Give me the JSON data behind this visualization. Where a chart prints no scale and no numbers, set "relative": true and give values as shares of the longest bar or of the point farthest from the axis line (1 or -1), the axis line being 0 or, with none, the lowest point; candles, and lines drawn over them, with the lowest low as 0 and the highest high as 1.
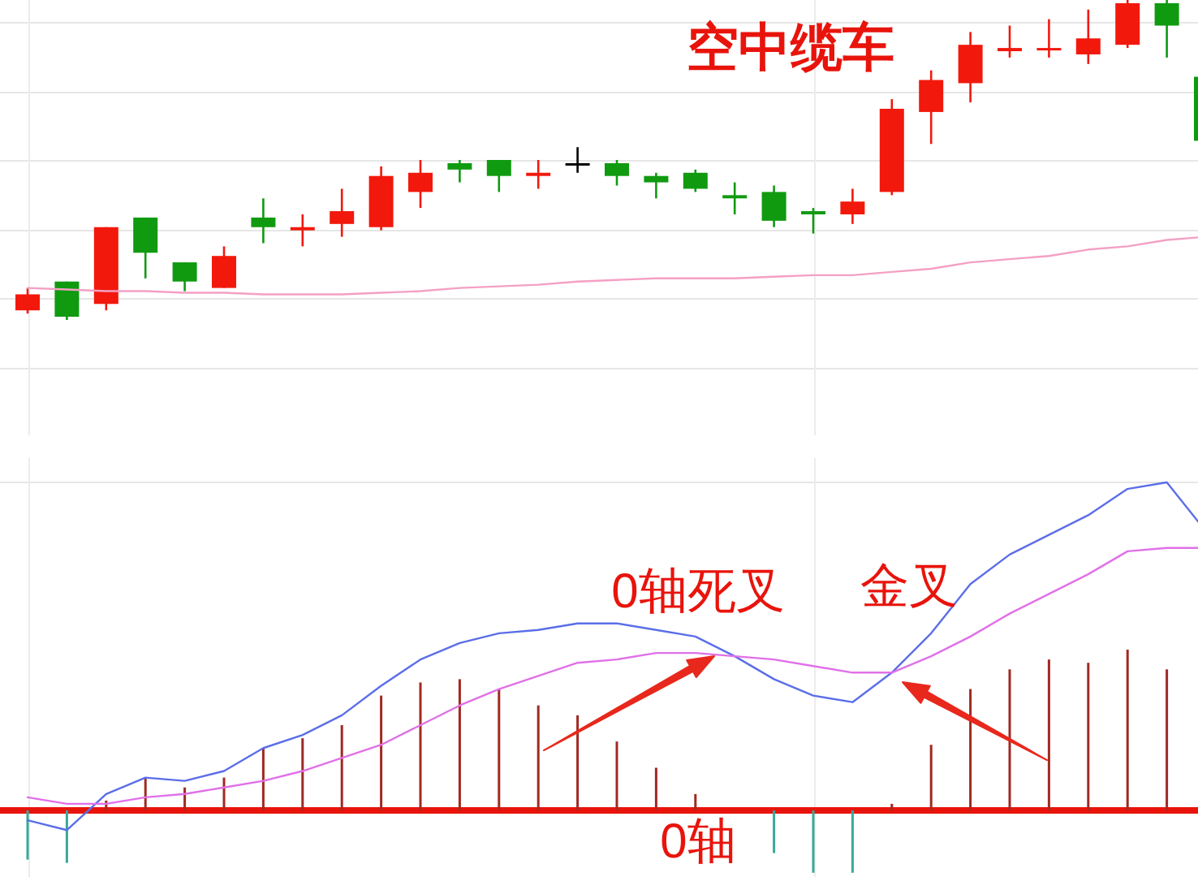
{
  "chart_data": [
    {
      "type": "candlestick",
      "relative": true,
      "grid": true,
      "categories": [
        null,
        null,
        null,
        null,
        null,
        null,
        null,
        null,
        null,
        null,
        null,
        null,
        null,
        null,
        null,
        null,
        null,
        null,
        null,
        null,
        null,
        null,
        null,
        null,
        null,
        null,
        null,
        null,
        null,
        null,
        null
      ],
      "ohlc": [
        [
          0.03,
          0.1,
          0.02,
          0.08
        ],
        [
          0.12,
          0.12,
          0,
          0.01
        ],
        [
          0.05,
          0.29,
          0.03,
          0.29
        ],
        [
          0.32,
          0.32,
          0.13,
          0.21
        ],
        [
          0.18,
          0.18,
          0.09,
          0.12
        ],
        [
          0.1,
          0.23,
          0.1,
          0.2
        ],
        [
          0.32,
          0.38,
          0.24,
          0.29
        ],
        [
          0.28,
          0.33,
          0.23,
          0.29
        ],
        [
          0.3,
          0.41,
          0.26,
          0.34
        ],
        [
          0.29,
          0.48,
          0.28,
          0.45
        ],
        [
          0.4,
          0.5,
          0.35,
          0.46
        ],
        [
          0.49,
          0.5,
          0.43,
          0.47
        ],
        [
          0.5,
          0.5,
          0.4,
          0.45
        ],
        [
          0.45,
          0.5,
          0.41,
          0.46
        ],
        [
          0.49,
          0.54,
          0.46,
          0.49
        ],
        [
          0.49,
          0.5,
          0.42,
          0.45
        ],
        [
          0.45,
          0.46,
          0.38,
          0.43
        ],
        [
          0.46,
          0.47,
          0.4,
          0.41
        ],
        [
          0.39,
          0.43,
          0.33,
          0.38
        ],
        [
          0.4,
          0.42,
          0.29,
          0.31
        ],
        [
          0.34,
          0.35,
          0.27,
          0.33
        ],
        [
          0.33,
          0.41,
          0.3,
          0.37
        ],
        [
          0.4,
          0.69,
          0.39,
          0.66
        ],
        [
          0.65,
          0.78,
          0.55,
          0.75
        ],
        [
          0.74,
          0.9,
          0.68,
          0.86
        ],
        [
          0.84,
          0.92,
          0.82,
          0.85
        ],
        [
          0.85,
          0.94,
          0.82,
          0.85
        ],
        [
          0.83,
          0.97,
          0.8,
          0.88
        ],
        [
          0.86,
          1,
          0.85,
          0.99
        ],
        [
          0.99,
          1,
          0.82,
          0.92
        ],
        [
          0.76,
          0.76,
          0.56,
          0.56
        ]
      ],
      "colors": [
        "#f2180c",
        "#109a10",
        "#f2180c",
        "#109a10",
        "#109a10",
        "#f2180c",
        "#109a10",
        "#f2180c",
        "#f2180c",
        "#f2180c",
        "#f2180c",
        "#109a10",
        "#109a10",
        "#f2180c",
        "#000000",
        "#109a10",
        "#109a10",
        "#109a10",
        "#109a10",
        "#109a10",
        "#109a10",
        "#f2180c",
        "#f2180c",
        "#f2180c",
        "#f2180c",
        "#f2180c",
        "#f2180c",
        "#f2180c",
        "#f2180c",
        "#109a10",
        "#109a10"
      ],
      "series": [
        {
          "type": "line",
          "color": "#f4a0c4",
          "values": [
            0.1,
            0.095,
            0.09,
            0.09,
            0.085,
            0.085,
            0.08,
            0.08,
            0.08,
            0.085,
            0.09,
            0.1,
            0.105,
            0.11,
            0.12,
            0.125,
            0.13,
            0.13,
            0.13,
            0.135,
            0.14,
            0.14,
            0.15,
            0.16,
            0.18,
            0.19,
            0.2,
            0.22,
            0.23,
            0.25,
            0.26
          ]
        }
      ],
      "annotations": [
        "空中缆车"
      ]
    },
    {
      "type": "bar",
      "relative": true,
      "grid": true,
      "categories": [
        null,
        null,
        null,
        null,
        null,
        null,
        null,
        null,
        null,
        null,
        null,
        null,
        null,
        null,
        null,
        null,
        null,
        null,
        null,
        null,
        null,
        null,
        null,
        null,
        null,
        null,
        null,
        null,
        null,
        null,
        null
      ],
      "series": [
        {
          "type": "bar",
          "values": [
            -0.15,
            -0.16,
            0.03,
            0.1,
            0.07,
            0.1,
            0.19,
            0.22,
            0.26,
            0.35,
            0.39,
            0.4,
            0.37,
            0.32,
            0.29,
            0.21,
            0.13,
            0.05,
            0,
            -0.13,
            -0.19,
            -0.19,
            0.02,
            0.2,
            0.37,
            0.43,
            0.46,
            0.45,
            0.49,
            0.43,
            null
          ],
          "colors": [
            "#3aa89a",
            "#3aa89a",
            "#a02a22",
            "#a02a22",
            "#a02a22",
            "#a02a22",
            "#a02a22",
            "#a02a22",
            "#a02a22",
            "#a02a22",
            "#a02a22",
            "#a02a22",
            "#a02a22",
            "#a02a22",
            "#a02a22",
            "#a02a22",
            "#a02a22",
            "#a02a22",
            "#a02a22",
            "#3aa89a",
            "#3aa89a",
            "#3aa89a",
            "#a02a22",
            "#a02a22",
            "#a02a22",
            "#a02a22",
            "#a02a22",
            "#a02a22",
            "#a02a22",
            "#a02a22",
            null
          ]
        },
        {
          "type": "line",
          "color": "#5b6ee8",
          "values": [
            -0.03,
            -0.06,
            0.05,
            0.1,
            0.09,
            0.12,
            0.19,
            0.23,
            0.29,
            0.38,
            0.46,
            0.51,
            0.54,
            0.55,
            0.57,
            0.57,
            0.55,
            0.53,
            0.47,
            0.4,
            0.35,
            0.33,
            0.42,
            0.54,
            0.69,
            0.78,
            0.84,
            0.9,
            0.98,
            1.0,
            0.85
          ]
        },
        {
          "type": "line",
          "color": "#e070e8",
          "values": [
            0.04,
            0.02,
            0.02,
            0.04,
            0.05,
            0.07,
            0.09,
            0.12,
            0.16,
            0.2,
            0.26,
            0.32,
            0.37,
            0.41,
            0.45,
            0.46,
            0.48,
            0.48,
            0.47,
            0.46,
            0.44,
            0.42,
            0.42,
            0.47,
            0.53,
            0.6,
            0.66,
            0.72,
            0.79,
            0.8,
            0.8
          ]
        }
      ],
      "ref_lines": [
        {
          "axis": "y",
          "value": 0,
          "label": "0轴",
          "color": "#e8140c"
        }
      ],
      "annotations": [
        "0轴死叉",
        "金叉"
      ]
    }
  ]
}
